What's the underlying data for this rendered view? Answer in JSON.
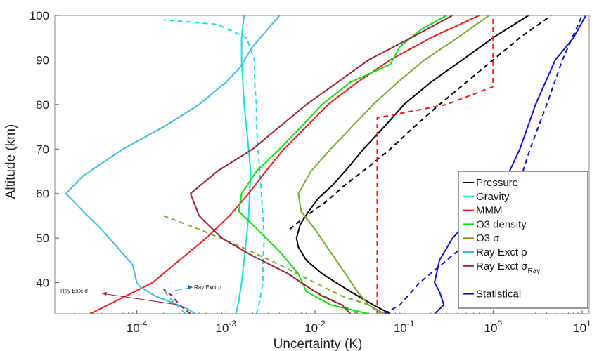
{
  "chart_data": {
    "type": "line",
    "title": "",
    "xlabel": "Uncertainty (K)",
    "ylabel": "Altitude (km)",
    "xscale": "log",
    "xlim": [
      1.2e-05,
      12
    ],
    "ylim": [
      33,
      100
    ],
    "x_ticks": [
      {
        "value": 0.0001,
        "base": "10",
        "exp": "-4"
      },
      {
        "value": 0.001,
        "base": "10",
        "exp": "-3"
      },
      {
        "value": 0.01,
        "base": "10",
        "exp": "-2"
      },
      {
        "value": 0.1,
        "base": "10",
        "exp": "-1"
      },
      {
        "value": 1,
        "base": "10",
        "exp": "0"
      },
      {
        "value": 10,
        "base": "10",
        "exp": "1"
      }
    ],
    "y_ticks": [
      40,
      50,
      60,
      70,
      80,
      90,
      100
    ],
    "legend_position": "bottom-right",
    "series": [
      {
        "key": "pressure",
        "name": "Pressure",
        "color": "#000000",
        "style": "solid",
        "points": [
          [
            0.07,
            33
          ],
          [
            0.045,
            35
          ],
          [
            0.025,
            38
          ],
          [
            0.012,
            42
          ],
          [
            0.008,
            45
          ],
          [
            0.0065,
            48
          ],
          [
            0.0062,
            50
          ],
          [
            0.0068,
            53
          ],
          [
            0.0085,
            56
          ],
          [
            0.011,
            59
          ],
          [
            0.016,
            62
          ],
          [
            0.024,
            66
          ],
          [
            0.035,
            70
          ],
          [
            0.06,
            75
          ],
          [
            0.1,
            80
          ],
          [
            0.2,
            85
          ],
          [
            0.45,
            90
          ],
          [
            1.0,
            95
          ],
          [
            2.5,
            100
          ]
        ]
      },
      {
        "key": "pressure-dashed",
        "name": "",
        "color": "#000000",
        "style": "dashed",
        "points": [
          [
            0.0052,
            52
          ],
          [
            0.008,
            55
          ],
          [
            0.013,
            58
          ],
          [
            0.022,
            62
          ],
          [
            0.04,
            66
          ],
          [
            0.07,
            70
          ],
          [
            0.13,
            75
          ],
          [
            0.25,
            80
          ],
          [
            0.5,
            85
          ],
          [
            1.0,
            90
          ],
          [
            2.0,
            95
          ],
          [
            4.5,
            100
          ]
        ]
      },
      {
        "key": "gravity",
        "name": "Gravity",
        "color": "#18dede",
        "style": "solid",
        "points": [
          [
            0.0013,
            33
          ],
          [
            0.0014,
            36
          ],
          [
            0.0015,
            40
          ],
          [
            0.0016,
            45
          ],
          [
            0.0017,
            50
          ],
          [
            0.0018,
            55
          ],
          [
            0.00185,
            60
          ],
          [
            0.0019,
            65
          ],
          [
            0.0018,
            70
          ],
          [
            0.0017,
            75
          ],
          [
            0.0016,
            80
          ],
          [
            0.00155,
            85
          ],
          [
            0.0015,
            90
          ],
          [
            0.0015,
            95
          ],
          [
            0.0016,
            100
          ]
        ]
      },
      {
        "key": "gravity-dashed",
        "name": "",
        "color": "#18dede",
        "style": "dashed",
        "points": [
          [
            0.0022,
            33
          ],
          [
            0.0024,
            36
          ],
          [
            0.0026,
            40
          ],
          [
            0.0026,
            45
          ],
          [
            0.0027,
            50
          ],
          [
            0.0026,
            55
          ],
          [
            0.0025,
            60
          ],
          [
            0.0024,
            65
          ],
          [
            0.0023,
            70
          ],
          [
            0.0022,
            75
          ],
          [
            0.0022,
            80
          ],
          [
            0.0021,
            85
          ],
          [
            0.0021,
            90
          ],
          [
            0.0017,
            95
          ],
          [
            0.0008,
            98
          ],
          [
            0.0002,
            99
          ]
        ]
      },
      {
        "key": "mmm",
        "name": "MMM",
        "color": "#ee1c1c",
        "style": "solid",
        "points": [
          [
            3e-05,
            33
          ],
          [
            6e-05,
            36
          ],
          [
            0.00015,
            40
          ],
          [
            0.0003,
            45
          ],
          [
            0.0006,
            50
          ],
          [
            0.0011,
            55
          ],
          [
            0.0018,
            60
          ],
          [
            0.0028,
            65
          ],
          [
            0.0045,
            70
          ],
          [
            0.008,
            75
          ],
          [
            0.014,
            80
          ],
          [
            0.03,
            85
          ],
          [
            0.07,
            90
          ],
          [
            0.2,
            95
          ],
          [
            0.7,
            100
          ]
        ]
      },
      {
        "key": "mmm-dashed",
        "name": "",
        "color": "#ee1c1c",
        "style": "dashed",
        "points": [
          [
            0.05,
            33
          ],
          [
            0.05,
            77
          ],
          [
            0.3,
            80
          ],
          [
            1.0,
            84
          ],
          [
            1.0,
            100
          ]
        ]
      },
      {
        "key": "o3density",
        "name": "O3 density",
        "color": "#11dd11",
        "style": "solid",
        "points": [
          [
            0.04,
            33
          ],
          [
            0.015,
            35
          ],
          [
            0.008,
            38
          ],
          [
            0.0065,
            42
          ],
          [
            0.004,
            47
          ],
          [
            0.002,
            53
          ],
          [
            0.0014,
            56
          ],
          [
            0.0015,
            60
          ],
          [
            0.0022,
            65
          ],
          [
            0.004,
            70
          ],
          [
            0.007,
            75
          ],
          [
            0.012,
            80
          ],
          [
            0.025,
            85
          ],
          [
            0.07,
            89
          ],
          [
            0.09,
            93
          ],
          [
            0.16,
            97
          ],
          [
            0.3,
            100
          ]
        ]
      },
      {
        "key": "o3density-dashed",
        "name": "",
        "color": "#11dd11",
        "style": "dashed",
        "points": [
          [
            0.03,
            33
          ],
          [
            0.02,
            35
          ],
          [
            0.01,
            38
          ],
          [
            0.005,
            42
          ]
        ]
      },
      {
        "key": "o3sigma",
        "name": "O3 σ",
        "color": "#77aa33",
        "style": "solid",
        "points": [
          [
            0.06,
            33
          ],
          [
            0.04,
            35
          ],
          [
            0.03,
            38
          ],
          [
            0.022,
            42
          ],
          [
            0.016,
            46
          ],
          [
            0.01,
            52
          ],
          [
            0.007,
            56
          ],
          [
            0.0065,
            60
          ],
          [
            0.009,
            65
          ],
          [
            0.015,
            70
          ],
          [
            0.026,
            75
          ],
          [
            0.045,
            80
          ],
          [
            0.085,
            85
          ],
          [
            0.17,
            90
          ],
          [
            0.4,
            95
          ],
          [
            0.9,
            100
          ]
        ]
      },
      {
        "key": "o3sigma-dashed",
        "name": "",
        "color": "#77aa33",
        "style": "dashed",
        "points": [
          [
            0.0002,
            55
          ],
          [
            0.0005,
            52
          ],
          [
            0.0015,
            48
          ],
          [
            0.004,
            44
          ],
          [
            0.01,
            40
          ],
          [
            0.02,
            37
          ],
          [
            0.04,
            35
          ],
          [
            0.055,
            33
          ]
        ]
      },
      {
        "key": "ray-rho",
        "name": "Ray Exct ρ",
        "color": "#44bbdd",
        "style": "solid",
        "points": [
          [
            0.00045,
            33
          ],
          [
            0.00038,
            34
          ],
          [
            0.00025,
            35.5
          ],
          [
            0.00016,
            37
          ],
          [
            0.00011,
            39
          ],
          [
            0.0001,
            40
          ],
          [
            9e-05,
            44
          ],
          [
            6e-05,
            48
          ],
          [
            4e-05,
            52
          ],
          [
            2.5e-05,
            56
          ],
          [
            1.6e-05,
            60
          ],
          [
            2.5e-05,
            64
          ],
          [
            7e-05,
            70
          ],
          [
            0.0002,
            75
          ],
          [
            0.0005,
            80
          ],
          [
            0.001,
            85
          ],
          [
            0.0014,
            88
          ],
          [
            0.0015,
            89
          ],
          [
            0.002,
            93
          ],
          [
            0.004,
            100
          ]
        ]
      },
      {
        "key": "ray-sigma",
        "name": "Ray Exct σ",
        "name_sub": "Ray",
        "color": "#992233",
        "style": "solid",
        "points": [
          [
            0.025,
            33
          ],
          [
            0.02,
            35
          ],
          [
            0.012,
            37
          ],
          [
            0.007,
            40
          ],
          [
            0.005,
            42
          ],
          [
            0.002,
            46
          ],
          [
            0.0009,
            50
          ],
          [
            0.0005,
            55
          ],
          [
            0.0004,
            60
          ],
          [
            0.0008,
            65
          ],
          [
            0.002,
            70
          ],
          [
            0.004,
            75
          ],
          [
            0.008,
            80
          ],
          [
            0.018,
            85
          ],
          [
            0.04,
            90
          ],
          [
            0.12,
            95
          ],
          [
            0.35,
            100
          ]
        ]
      },
      {
        "key": "ray-sigma-dashed",
        "name": "",
        "color": "#992233",
        "style": "dashed",
        "points": [
          [
            0.0004,
            33
          ],
          [
            0.0003,
            35
          ],
          [
            0.00025,
            37
          ],
          [
            0.0002,
            38.5
          ]
        ]
      },
      {
        "key": "ray-rho-dashed",
        "name": "",
        "color": "#44bbdd",
        "style": "dashed",
        "points": [
          [
            0.00035,
            33
          ],
          [
            0.00028,
            35
          ],
          [
            0.00022,
            37
          ],
          [
            0.00021,
            38
          ]
        ]
      },
      {
        "key": "statistical",
        "name": "Statistical",
        "color": "#1111cc",
        "style": "solid",
        "points": [
          [
            0.22,
            33
          ],
          [
            0.28,
            35
          ],
          [
            0.27,
            36
          ],
          [
            0.25,
            38
          ],
          [
            0.22,
            40
          ],
          [
            0.25,
            45
          ],
          [
            0.35,
            50
          ],
          [
            0.6,
            55
          ],
          [
            0.9,
            58
          ],
          [
            1.3,
            62
          ],
          [
            2.0,
            70
          ],
          [
            3.0,
            80
          ],
          [
            5.0,
            90
          ],
          [
            8.0,
            95
          ],
          [
            11.0,
            100
          ]
        ]
      },
      {
        "key": "statistical-dashed",
        "name": "",
        "color": "#1111cc",
        "style": "dashed",
        "points": [
          [
            0.06,
            33
          ],
          [
            0.09,
            35
          ],
          [
            0.15,
            40
          ],
          [
            0.3,
            45
          ],
          [
            0.6,
            50
          ],
          [
            1.1,
            55
          ],
          [
            1.8,
            60
          ],
          [
            2.6,
            70
          ],
          [
            4.0,
            80
          ],
          [
            6.0,
            90
          ],
          [
            10.0,
            100
          ]
        ]
      }
    ],
    "annotations": [
      {
        "key": "ray-extc-sigma",
        "text": "Ray Extc σ"
      },
      {
        "key": "ray-exct-rho",
        "text": "Ray Exct ρ"
      }
    ]
  }
}
